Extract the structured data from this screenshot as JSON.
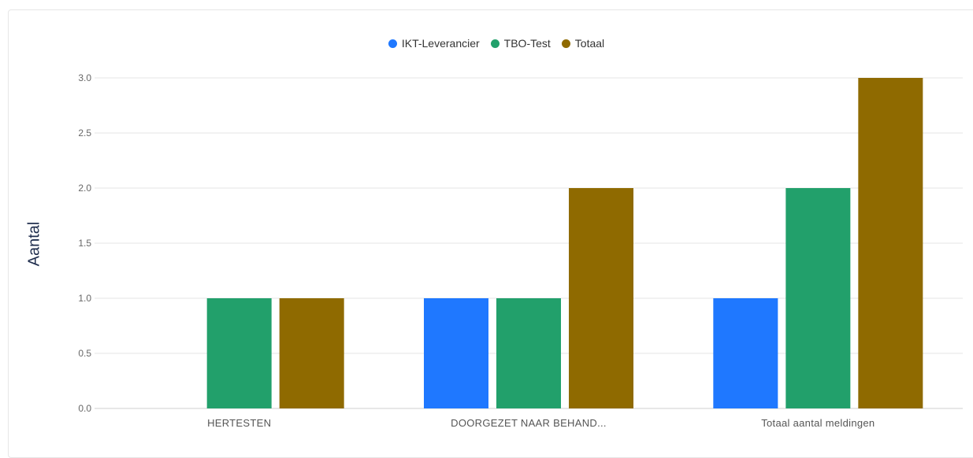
{
  "chart_data": {
    "type": "bar",
    "categories": [
      "HERTESTEN",
      "DOORGEZET NAAR BEHAND...",
      "Totaal aantal meldingen"
    ],
    "series": [
      {
        "name": "IKT-Leverancier",
        "color": "#1f78ff",
        "values": [
          0,
          1,
          1
        ]
      },
      {
        "name": "TBO-Test",
        "color": "#22a06b",
        "values": [
          1,
          1,
          2
        ]
      },
      {
        "name": "Totaal",
        "color": "#8f6a00",
        "values": [
          1,
          2,
          3
        ]
      }
    ],
    "ylabel": "Aantal",
    "ylim": [
      0,
      3
    ],
    "yticks": [
      "0.0",
      "0.5",
      "1.0",
      "1.5",
      "2.0",
      "2.5",
      "3.0"
    ],
    "grid": true,
    "legend_position": "top-center"
  }
}
